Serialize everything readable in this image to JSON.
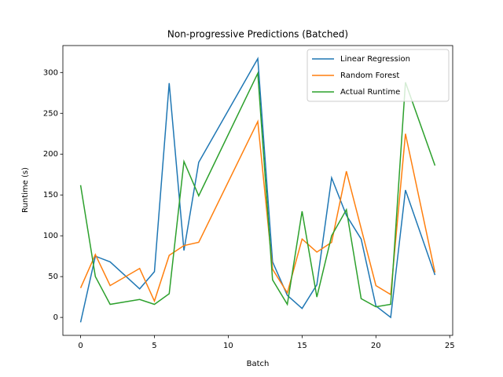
{
  "chart_data": {
    "type": "line",
    "title": "Non-progressive Predictions (Batched)",
    "x_label": "Batch",
    "y_label": "Runtime (s)",
    "x": [
      0,
      1,
      2,
      4,
      5,
      6,
      7,
      8,
      12,
      13,
      14,
      15,
      16,
      17,
      18,
      19,
      20,
      21,
      22,
      24
    ],
    "series": [
      {
        "name": "Linear Regression",
        "color": "#1f77b4",
        "values": [
          -6,
          75,
          68,
          35,
          56,
          287,
          82,
          190,
          317,
          68,
          27,
          11,
          40,
          171,
          125,
          96,
          14,
          0,
          156,
          52
        ]
      },
      {
        "name": "Random Forest",
        "color": "#ff7f0e",
        "values": [
          36,
          77,
          39,
          60,
          20,
          76,
          88,
          92,
          240,
          59,
          30,
          96,
          80,
          92,
          179,
          109,
          39,
          28,
          225,
          55
        ]
      },
      {
        "name": "Actual Runtime",
        "color": "#2ca02c",
        "values": [
          162,
          50,
          16,
          22,
          16,
          29,
          191,
          149,
          299,
          46,
          16,
          130,
          25,
          100,
          132,
          23,
          13,
          16,
          288,
          186
        ]
      }
    ],
    "xlim": [
      -1.2,
      25.2
    ],
    "xticks": [
      0,
      5,
      10,
      15,
      20,
      25
    ],
    "ylim": [
      -22,
      333
    ],
    "yticks": [
      0,
      50,
      100,
      150,
      200,
      250,
      300
    ],
    "legend": "upper right"
  }
}
